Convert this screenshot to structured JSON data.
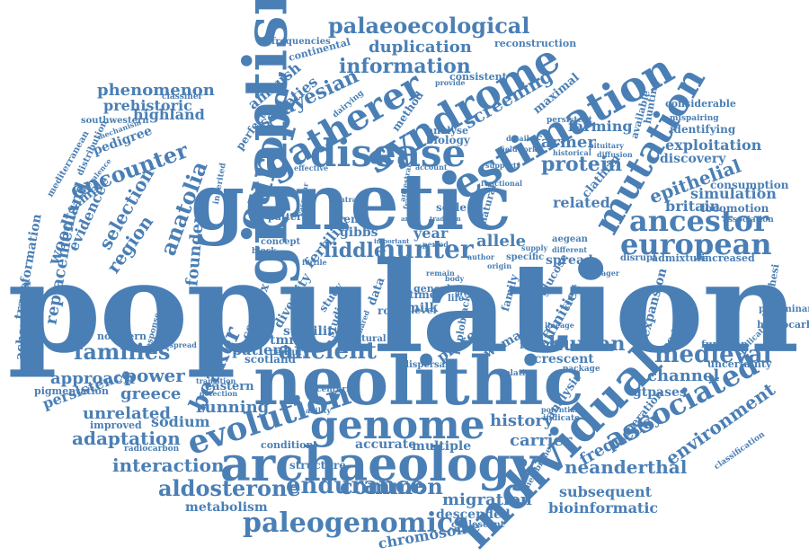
{
  "colors": {
    "word": "#4a7fb5",
    "background": "#ffffff"
  },
  "words": [
    "population",
    "neolithic",
    "genetic",
    "gigantism",
    "archaeology",
    "individual",
    "genome",
    "syndrome",
    "estimation",
    "disease",
    "gatherer",
    "europe",
    "mutation",
    "ancestor",
    "european",
    "evolution",
    "associated",
    "paleogenomics",
    "palaeoecological",
    "information",
    "duplication",
    "bayesian",
    "screening",
    "anatolia",
    "encounter",
    "selection",
    "region",
    "founder",
    "hunter",
    "liddle",
    "ancient",
    "families",
    "medieval",
    "human",
    "beaker",
    "power",
    "approach",
    "greece",
    "persistence",
    "unrelated",
    "sodium",
    "adaptation",
    "running",
    "interaction",
    "aldosterone",
    "endurance",
    "common",
    "metabolism",
    "chromosome",
    "history",
    "carrier",
    "accurate",
    "multiple",
    "migration",
    "descended",
    "coalescent",
    "subsequent",
    "bioinformatic",
    "neanderthal",
    "frequency",
    "environment",
    "channel",
    "gtpases",
    "crescent",
    "protein",
    "farmer",
    "farming",
    "biology",
    "exploitation",
    "discovery",
    "epithelial",
    "simulation",
    "locomotion",
    "britain",
    "related",
    "fertility",
    "allele",
    "gibbs",
    "renin",
    "scale",
    "year",
    "milk",
    "stability",
    "scotland",
    "patient",
    "complex",
    "diversity",
    "tmrca",
    "woman",
    "present",
    "level",
    "time",
    "reconstruction",
    "phenomenon",
    "prehistoric",
    "highland",
    "pedigree",
    "southwestern",
    "ambush",
    "societies",
    "continental",
    "frequencies",
    "consistent",
    "maximal",
    "method",
    "perfect",
    "mediterranean",
    "woodland",
    "replacement",
    "evidence",
    "sample",
    "transformation",
    "achavanich",
    "pigmentation",
    "northern",
    "eastern",
    "improved",
    "radiocarbon",
    "condition",
    "structure",
    "century",
    "centuries",
    "cultural",
    "dispersal",
    "recent",
    "spread",
    "affinities",
    "expansion",
    "modern",
    "function",
    "uncertainty",
    "hypothesi",
    "hydrocarbon",
    "preliminary",
    "application",
    "classification",
    "increased",
    "admixture",
    "disrupt",
    "association",
    "consumption",
    "considerable",
    "identifying",
    "hunting",
    "available",
    "persistent",
    "mispairing",
    "pituitary",
    "diffusion",
    "glucose",
    "aegean",
    "different",
    "specific",
    "origin",
    "analyse",
    "fieldwork",
    "haploblack",
    "study",
    "data",
    "analysis",
    "generation",
    "package",
    "relative",
    "potential",
    "indicate",
    "membrane",
    "clathrin",
    "dairying",
    "distribution",
    "mechanism",
    "classifier",
    "prevalence",
    "inherited",
    "effective",
    "vascular",
    "response",
    "widespread",
    "transition",
    "detection",
    "concept",
    "pattern",
    "central",
    "account",
    "detailed",
    "historical",
    "functional",
    "natural",
    "support",
    "provide",
    "important",
    "arose",
    "frame",
    "ancestral",
    "genealogy",
    "life",
    "role",
    "block",
    "fertile",
    "report",
    "lineage",
    "forager",
    "current",
    "family",
    "ability",
    "greater",
    "body",
    "author",
    "supply",
    "period",
    "studied",
    "remain",
    "shared",
    "tradition",
    "health"
  ]
}
